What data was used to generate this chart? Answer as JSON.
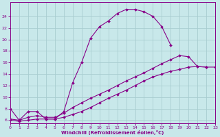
{
  "bg_color": "#c8e8ea",
  "grid_color": "#a8cdd0",
  "line_color": "#880088",
  "xlabel": "Windchill (Refroidissement éolien,°C)",
  "xlim": [
    0,
    23
  ],
  "ylim": [
    5.5,
    26.5
  ],
  "yticks": [
    6,
    8,
    10,
    12,
    14,
    16,
    18,
    20,
    22,
    24
  ],
  "xticks": [
    0,
    1,
    2,
    3,
    4,
    5,
    6,
    7,
    8,
    9,
    10,
    11,
    12,
    13,
    14,
    15,
    16,
    17,
    18,
    19,
    20,
    21,
    22,
    23
  ],
  "curve1_x": [
    0,
    1,
    2,
    3,
    4,
    5,
    6,
    7,
    8,
    9,
    10,
    11,
    12,
    13,
    14,
    15,
    16,
    17,
    18
  ],
  "curve1_y": [
    8.0,
    6.0,
    7.5,
    7.5,
    6.2,
    6.2,
    7.5,
    12.5,
    16.0,
    20.2,
    22.2,
    23.2,
    24.5,
    25.2,
    25.2,
    24.8,
    24.0,
    22.2,
    19.0
  ],
  "curve2_x": [
    0,
    1,
    2,
    3,
    4,
    5,
    6,
    7,
    8,
    9,
    10,
    11,
    12,
    13,
    14,
    15,
    16,
    17,
    18,
    19,
    20,
    21,
    22
  ],
  "curve2_y": [
    6.2,
    6.0,
    6.5,
    6.8,
    6.5,
    6.5,
    7.2,
    8.2,
    9.0,
    9.8,
    10.5,
    11.2,
    12.0,
    12.8,
    13.5,
    14.2,
    15.0,
    15.8,
    16.5,
    17.2,
    17.0,
    15.3,
    15.2
  ],
  "curve3_x": [
    0,
    1,
    2,
    3,
    4,
    5,
    6,
    7,
    8,
    9,
    10,
    11,
    12,
    13,
    14,
    15,
    16,
    17,
    18,
    19,
    20,
    21,
    22,
    23
  ],
  "curve3_y": [
    6.0,
    5.8,
    6.0,
    6.2,
    6.2,
    6.2,
    6.5,
    7.0,
    7.5,
    8.2,
    9.0,
    9.8,
    10.5,
    11.2,
    12.0,
    12.8,
    13.5,
    14.0,
    14.5,
    14.8,
    15.2,
    15.3,
    15.2,
    15.2
  ]
}
